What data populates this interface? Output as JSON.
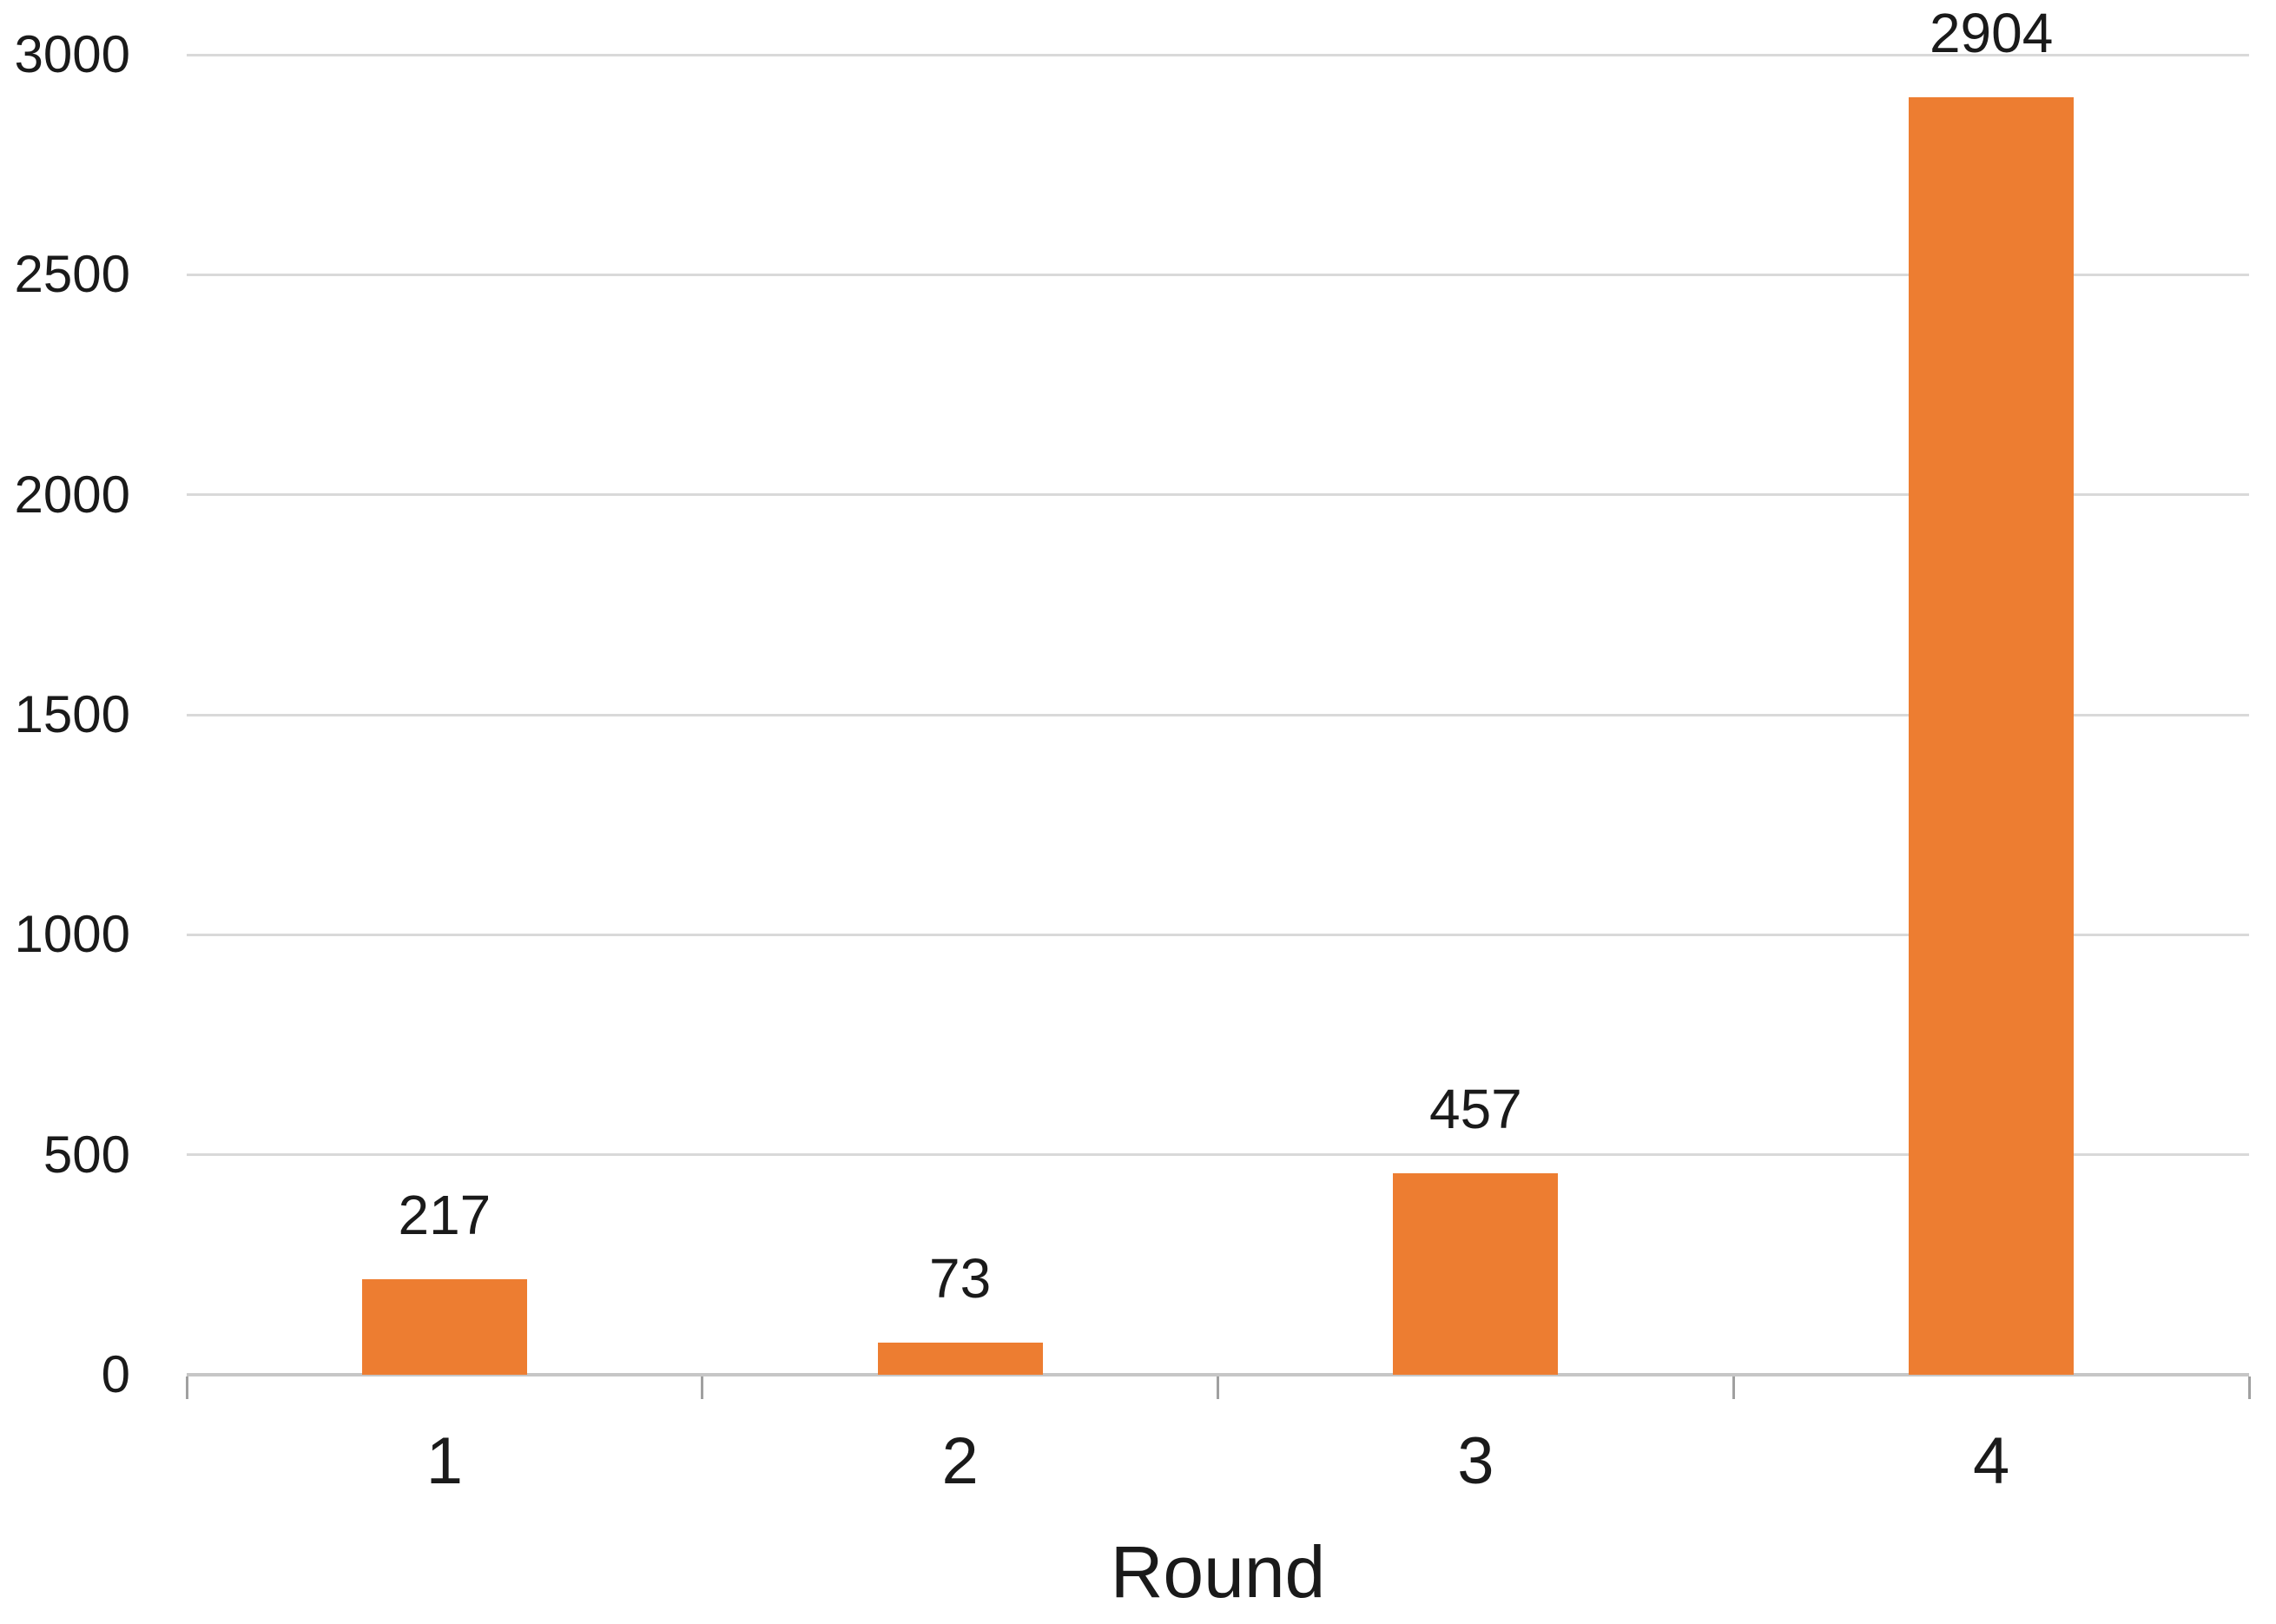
{
  "chart_data": {
    "type": "bar",
    "categories": [
      "1",
      "2",
      "3",
      "4"
    ],
    "values": [
      217,
      73,
      457,
      2904
    ],
    "value_labels": [
      "217",
      "73",
      "457",
      "2904"
    ],
    "title": "",
    "xlabel": "Round",
    "ylabel": "",
    "ylim": [
      0,
      3000
    ],
    "ytick_step": 500,
    "yticks": [
      0,
      500,
      1000,
      1500,
      2000,
      2500,
      3000
    ],
    "ytick_labels": [
      "0",
      "500",
      "1000",
      "1500",
      "2000",
      "2500",
      "3000"
    ],
    "grid": true,
    "legend_position": "none",
    "colors": {
      "bar": "#ED7D31",
      "gridline": "#D9D9D9",
      "axis_line": "#C6C6C6",
      "tick": "#A0A0A0",
      "text": "#1A1A1A",
      "background": "#FFFFFF"
    }
  }
}
